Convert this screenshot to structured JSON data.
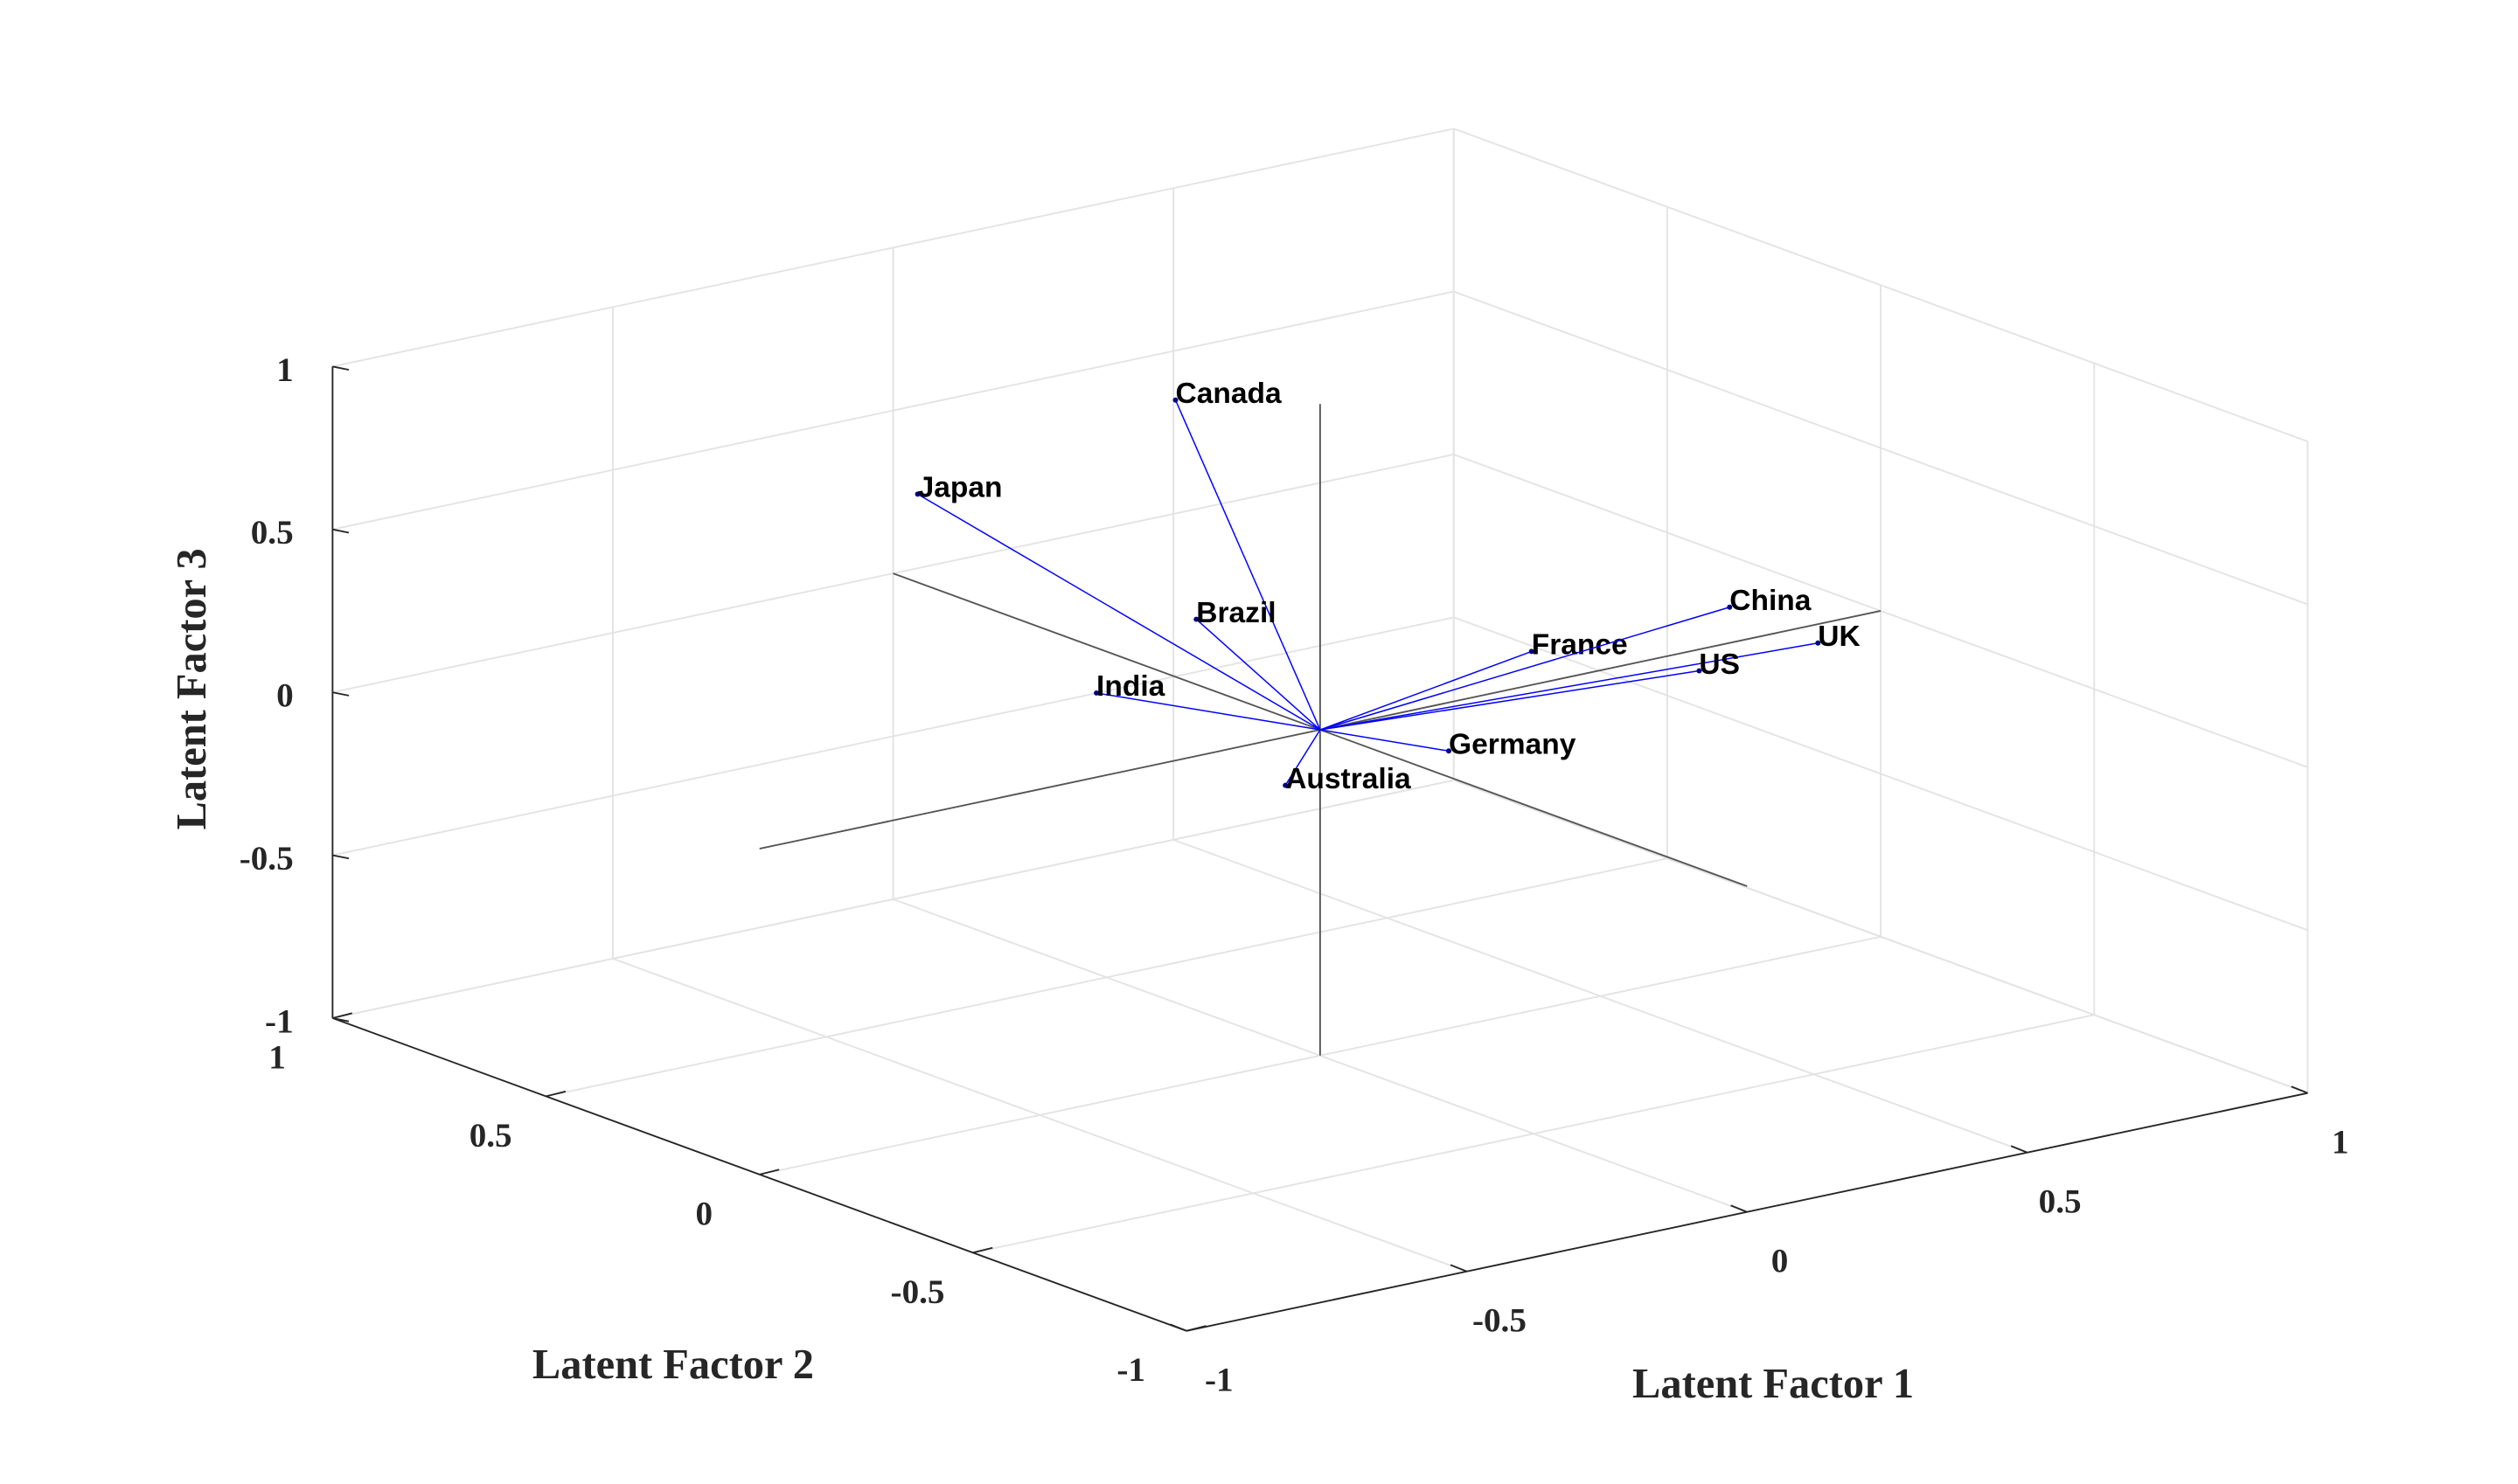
{
  "chart_data": {
    "type": "biplot3d",
    "labels": [
      "Canada",
      "Japan",
      "Brazil",
      "India",
      "Germany",
      "Australia",
      "France",
      "China",
      "UK",
      "US"
    ],
    "x": [
      0.1,
      -0.2,
      0,
      -0.3,
      0.1,
      -0.1,
      0.4,
      0.7,
      0.85,
      0.6
    ],
    "y": [
      0.47,
      0.68,
      0.29,
      0.13,
      -0.17,
      -0.05,
      0.03,
      -0.04,
      -0.05,
      -0.1
    ],
    "z": [
      0.75,
      0.47,
      0.2,
      0.16,
      -0.02,
      -0.11,
      0.08,
      0.14,
      -0.02,
      0.01
    ],
    "color": "#0000ff",
    "xlabel": "Latent Factor 1",
    "ylabel": "Latent Factor 2",
    "zlabel": "Latent Factor 3",
    "xlim": [
      -1,
      1
    ],
    "ylim": [
      -1,
      1
    ],
    "zlim": [
      -1,
      1
    ],
    "xticks": [
      -1,
      -0.5,
      0,
      0.5,
      1
    ],
    "yticks": [
      -1,
      -0.5,
      0,
      0.5,
      1
    ],
    "zticks": [
      -1,
      -0.5,
      0,
      0.5,
      1
    ],
    "grid": true
  }
}
